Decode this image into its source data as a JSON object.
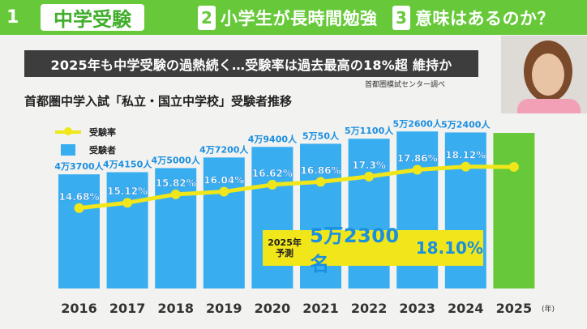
{
  "nav": {
    "items": [
      {
        "num": "1",
        "label": "中学受験"
      },
      {
        "num": "2",
        "label": "小学生が長時間勉強"
      },
      {
        "num": "3",
        "label": "意味はあるのか？"
      }
    ]
  },
  "headline": "2025年も中学受験の過熱続く…受験率は過去最高の18%超 維持か",
  "source": "首都圏模試センター調べ",
  "chart_data": {
    "type": "bar",
    "title": "首都圏中学入試「私立・国立中学校」受験者推移",
    "categories": [
      "2016",
      "2017",
      "2018",
      "2019",
      "2020",
      "2021",
      "2022",
      "2023",
      "2024",
      "2025"
    ],
    "x_unit": "(年)",
    "series": [
      {
        "name": "受験者",
        "values": [
          43700,
          44150,
          45000,
          47200,
          49400,
          50050,
          51100,
          52600,
          52400,
          52300
        ],
        "labels": [
          "4万3700人",
          "4万4150人",
          "4万5000人",
          "4万7200人",
          "4万9400人",
          "5万50人",
          "5万1100人",
          "5万2600人",
          "5万2400人",
          ""
        ],
        "color": "#38aef0",
        "forecast_color": "#67c93a"
      },
      {
        "name": "受験率",
        "type": "line",
        "values": [
          14.68,
          15.12,
          15.82,
          16.04,
          16.62,
          16.86,
          17.3,
          17.86,
          18.12,
          18.1
        ],
        "labels": [
          "14.68%",
          "15.12%",
          "15.82%",
          "16.04%",
          "16.62%",
          "16.86%",
          "17.3%",
          "17.86%",
          "18.12%",
          ""
        ],
        "color": "#f0e61a"
      }
    ],
    "ylim": [
      0,
      55000
    ],
    "rate_lim": [
      8,
      22
    ],
    "legend": [
      "受験率",
      "受験者"
    ],
    "forecast": {
      "label_line1": "2025年",
      "label_line2": "予測",
      "value": "5万2300名",
      "rate": "18.10%"
    }
  }
}
